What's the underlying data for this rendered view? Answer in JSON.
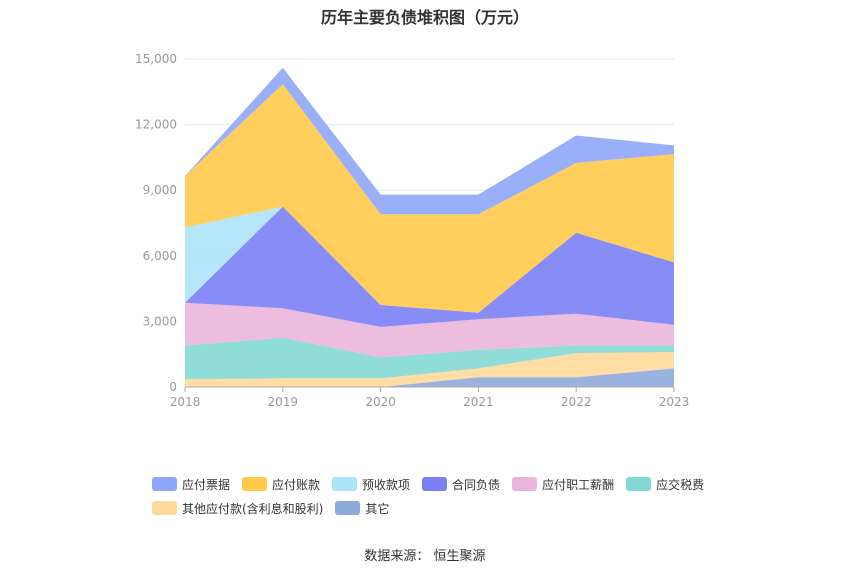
{
  "title": "历年主要负债堆积图（万元）",
  "source": "数据来源：  恒生聚源",
  "chart_data": {
    "type": "area",
    "stacked": true,
    "categories": [
      "2018",
      "2019",
      "2020",
      "2021",
      "2022",
      "2023"
    ],
    "ylim": [
      0,
      15000
    ],
    "yticks": [
      0,
      3000,
      6000,
      9000,
      12000,
      15000
    ],
    "ytick_labels": [
      "0",
      "3,000",
      "6,000",
      "9,000",
      "12,000",
      "15,000"
    ],
    "grid": true,
    "legend_position": "bottom",
    "series": [
      {
        "name": "其它",
        "color": "#8eaadb",
        "values": [
          0,
          0,
          0,
          450,
          450,
          850
        ]
      },
      {
        "name": "其他应付款(含利息和股利)",
        "color": "#ffd99a",
        "values": [
          350,
          400,
          400,
          400,
          1100,
          750
        ]
      },
      {
        "name": "应交税费",
        "color": "#83d8d4",
        "values": [
          1550,
          1850,
          950,
          850,
          350,
          300
        ]
      },
      {
        "name": "应付职工薪酬",
        "color": "#ebb6dc",
        "values": [
          1950,
          1350,
          1400,
          1400,
          1450,
          950
        ]
      },
      {
        "name": "合同负债",
        "color": "#7b7ff5",
        "values": [
          0,
          4650,
          1000,
          300,
          3700,
          2850
        ]
      },
      {
        "name": "预收款项",
        "color": "#ade3f8",
        "values": [
          3450,
          0,
          0,
          0,
          0,
          0
        ]
      },
      {
        "name": "应付账款",
        "color": "#ffc94b",
        "values": [
          2350,
          5600,
          4150,
          4500,
          3200,
          4950
        ]
      },
      {
        "name": "应付票据",
        "color": "#8ea6fa",
        "values": [
          0,
          750,
          900,
          900,
          1250,
          400
        ]
      }
    ]
  },
  "legend": [
    {
      "name": "应付票据",
      "color": "#8ea6fa"
    },
    {
      "name": "应付账款",
      "color": "#ffc94b"
    },
    {
      "name": "预收款项",
      "color": "#ade3f8"
    },
    {
      "name": "合同负债",
      "color": "#7b7ff5"
    },
    {
      "name": "应付职工薪酬",
      "color": "#ebb6dc"
    },
    {
      "name": "应交税费",
      "color": "#83d8d4"
    },
    {
      "name": "其他应付款(含利息和股利)",
      "color": "#ffd99a"
    },
    {
      "name": "其它",
      "color": "#8eaadb"
    }
  ]
}
